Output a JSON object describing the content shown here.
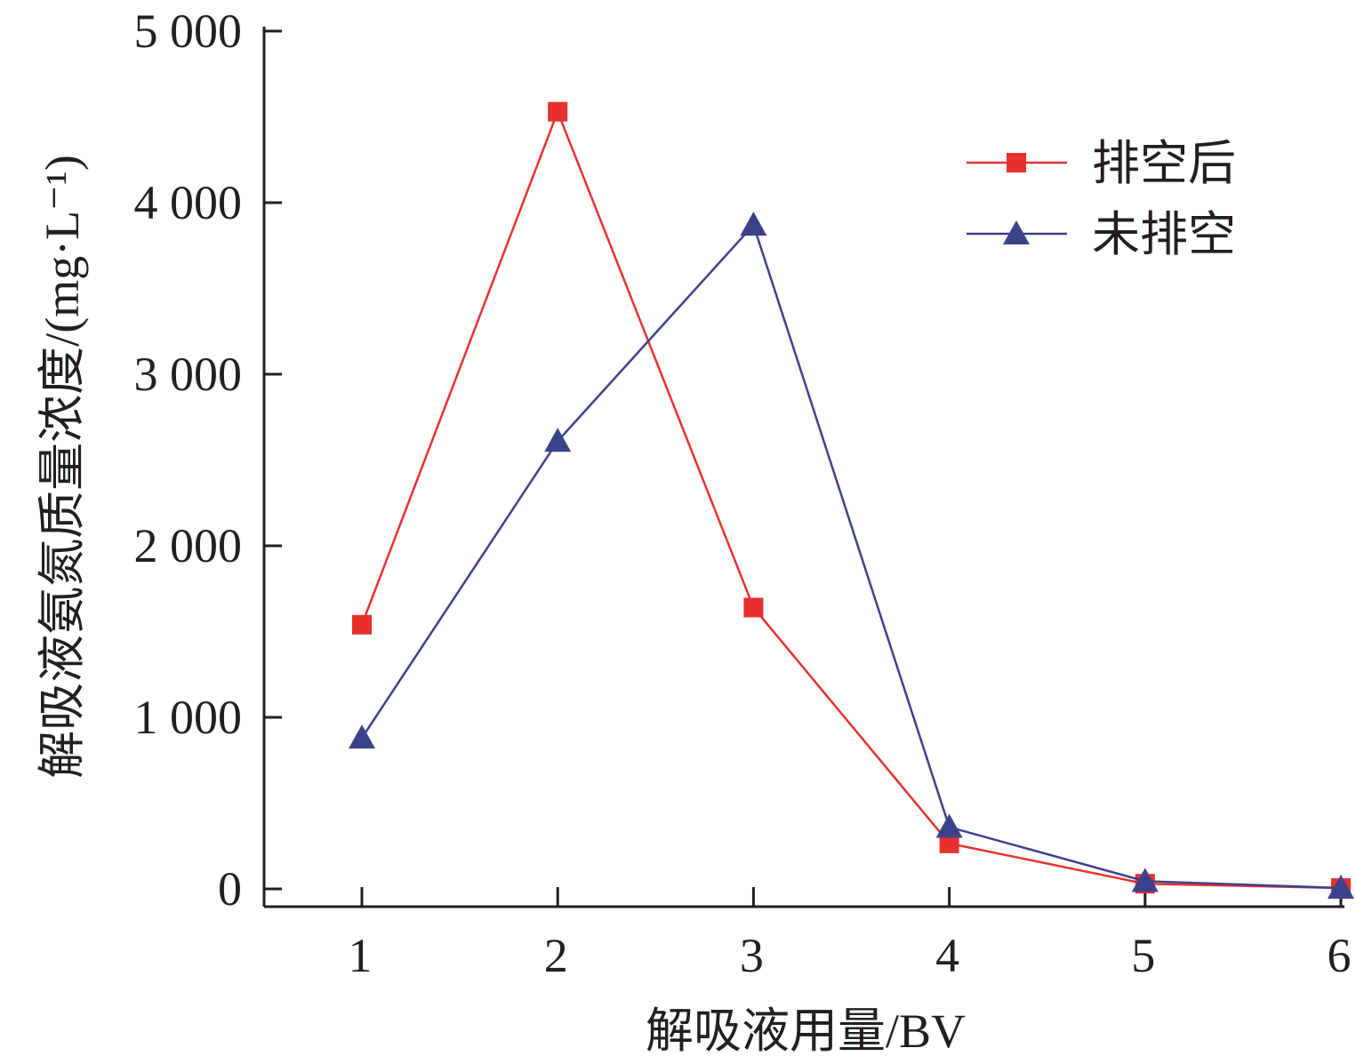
{
  "chart_data": {
    "type": "line",
    "title": "",
    "xlabel": "解吸液用量/BV",
    "ylabel": "解吸液氨氮质量浓度/(mg·L⁻¹)",
    "x": [
      1,
      2,
      3,
      4,
      5,
      6
    ],
    "x_tick_labels": [
      "1",
      "2",
      "3",
      "4",
      "5",
      "6"
    ],
    "ylim": [
      0,
      5000
    ],
    "y_ticks": [
      0,
      1000,
      2000,
      3000,
      4000,
      5000
    ],
    "y_tick_labels": [
      "0",
      "1 000",
      "2 000",
      "3 000",
      "4 000",
      "5 000"
    ],
    "grid": false,
    "legend_position": "top-right",
    "series": [
      {
        "name": "排空后",
        "marker": "square",
        "color": "#e8312f",
        "values": [
          1540,
          4530,
          1640,
          265,
          30,
          5
        ]
      },
      {
        "name": "未排空",
        "marker": "triangle",
        "color": "#3c4289",
        "values": [
          880,
          2610,
          3870,
          360,
          45,
          5
        ]
      }
    ]
  }
}
